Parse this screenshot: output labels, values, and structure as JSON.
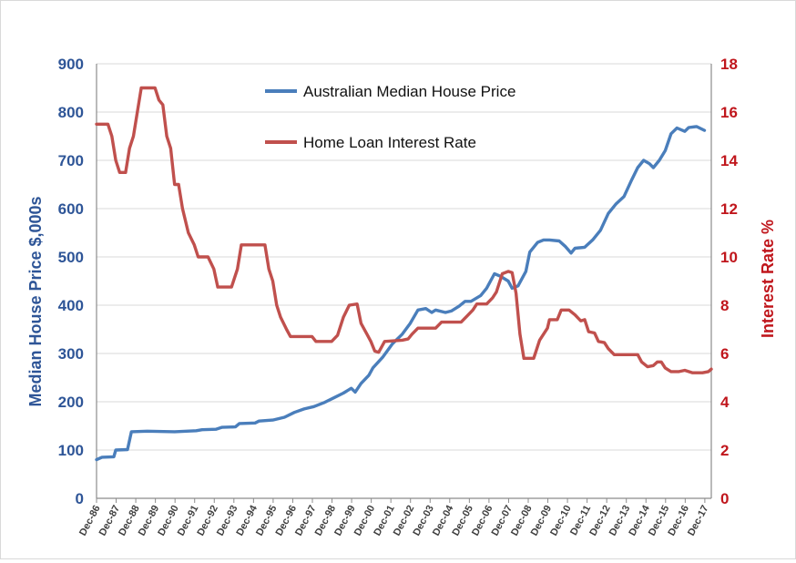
{
  "chart_data": {
    "type": "line",
    "xlabel": "",
    "ylabel_left": "Median House Price   $,000s",
    "ylabel_right": "Interest Rate  %",
    "ylim_left": [
      0,
      900
    ],
    "ylim_right": [
      0,
      18
    ],
    "yticks_left": [
      "0",
      "100",
      "200",
      "300",
      "400",
      "500",
      "600",
      "700",
      "800",
      "900"
    ],
    "yticks_right": [
      "0",
      "2",
      "4",
      "6",
      "8",
      "10",
      "12",
      "14",
      "16",
      "18"
    ],
    "grid": "horizontal",
    "legend_position": "top-center",
    "x_range": [
      1986.92,
      2018.25
    ],
    "categories": [
      "Dec-86",
      "Dec-87",
      "Dec-88",
      "Dec-89",
      "Dec-90",
      "Dec-91",
      "Dec-92",
      "Dec-93",
      "Dec-94",
      "Dec-95",
      "Dec-96",
      "Dec-97",
      "Dec-98",
      "Dec-99",
      "Dec-00",
      "Dec-01",
      "Dec-02",
      "Dec-03",
      "Dec-04",
      "Dec-05",
      "Dec-06",
      "Dec-07",
      "Dec-08",
      "Dec-09",
      "Dec-10",
      "Dec-11",
      "Dec-12",
      "Dec-13",
      "Dec-14",
      "Dec-15",
      "Dec-16",
      "Dec-17"
    ],
    "series": [
      {
        "name": "Australian Median House Price",
        "axis": "left",
        "color": "#4a7ebb",
        "points": [
          [
            1986.92,
            80
          ],
          [
            1987.2,
            85
          ],
          [
            1987.8,
            86
          ],
          [
            1987.9,
            100
          ],
          [
            1988.5,
            101
          ],
          [
            1988.7,
            138
          ],
          [
            1989.5,
            139
          ],
          [
            1990.9,
            138
          ],
          [
            1991.5,
            139
          ],
          [
            1992.0,
            140
          ],
          [
            1992.3,
            142
          ],
          [
            1993.0,
            143
          ],
          [
            1993.3,
            147
          ],
          [
            1994.0,
            148
          ],
          [
            1994.2,
            155
          ],
          [
            1995.0,
            156
          ],
          [
            1995.2,
            160
          ],
          [
            1995.9,
            162
          ],
          [
            1996.5,
            168
          ],
          [
            1997.0,
            178
          ],
          [
            1997.5,
            185
          ],
          [
            1998.0,
            190
          ],
          [
            1998.5,
            198
          ],
          [
            1999.0,
            208
          ],
          [
            1999.5,
            218
          ],
          [
            1999.9,
            228
          ],
          [
            2000.1,
            220
          ],
          [
            2000.4,
            238
          ],
          [
            2000.8,
            255
          ],
          [
            2001.0,
            270
          ],
          [
            2001.5,
            292
          ],
          [
            2002.0,
            320
          ],
          [
            2002.5,
            340
          ],
          [
            2002.9,
            362
          ],
          [
            2003.3,
            390
          ],
          [
            2003.7,
            393
          ],
          [
            2004.0,
            385
          ],
          [
            2004.2,
            390
          ],
          [
            2004.7,
            385
          ],
          [
            2005.0,
            388
          ],
          [
            2005.4,
            398
          ],
          [
            2005.7,
            408
          ],
          [
            2006.0,
            408
          ],
          [
            2006.5,
            420
          ],
          [
            2006.8,
            435
          ],
          [
            2007.2,
            465
          ],
          [
            2007.5,
            460
          ],
          [
            2007.9,
            450
          ],
          [
            2008.1,
            435
          ],
          [
            2008.4,
            440
          ],
          [
            2008.8,
            470
          ],
          [
            2009.0,
            510
          ],
          [
            2009.4,
            530
          ],
          [
            2009.7,
            535
          ],
          [
            2010.0,
            535
          ],
          [
            2010.5,
            533
          ],
          [
            2010.8,
            522
          ],
          [
            2011.1,
            508
          ],
          [
            2011.3,
            518
          ],
          [
            2011.8,
            520
          ],
          [
            2012.2,
            535
          ],
          [
            2012.6,
            555
          ],
          [
            2013.0,
            590
          ],
          [
            2013.4,
            610
          ],
          [
            2013.8,
            625
          ],
          [
            2014.2,
            660
          ],
          [
            2014.5,
            685
          ],
          [
            2014.8,
            700
          ],
          [
            2015.1,
            693
          ],
          [
            2015.3,
            685
          ],
          [
            2015.6,
            700
          ],
          [
            2015.9,
            720
          ],
          [
            2016.2,
            755
          ],
          [
            2016.5,
            767
          ],
          [
            2016.9,
            760
          ],
          [
            2017.1,
            768
          ],
          [
            2017.5,
            770
          ],
          [
            2017.9,
            762
          ]
        ]
      },
      {
        "name": "Home Loan Interest Rate",
        "axis": "right",
        "color": "#c0504d",
        "points": [
          [
            1986.92,
            15.5
          ],
          [
            1987.5,
            15.5
          ],
          [
            1987.7,
            15.0
          ],
          [
            1987.9,
            14.0
          ],
          [
            1988.1,
            13.5
          ],
          [
            1988.4,
            13.5
          ],
          [
            1988.6,
            14.5
          ],
          [
            1988.8,
            15.0
          ],
          [
            1989.0,
            16.0
          ],
          [
            1989.2,
            17.0
          ],
          [
            1989.9,
            17.0
          ],
          [
            1990.1,
            16.5
          ],
          [
            1990.3,
            16.3
          ],
          [
            1990.5,
            15.0
          ],
          [
            1990.7,
            14.5
          ],
          [
            1990.9,
            13.0
          ],
          [
            1991.1,
            13.0
          ],
          [
            1991.3,
            12.0
          ],
          [
            1991.6,
            11.0
          ],
          [
            1991.9,
            10.5
          ],
          [
            1992.1,
            10.0
          ],
          [
            1992.6,
            10.0
          ],
          [
            1992.9,
            9.5
          ],
          [
            1993.1,
            8.75
          ],
          [
            1993.8,
            8.75
          ],
          [
            1994.1,
            9.5
          ],
          [
            1994.3,
            10.5
          ],
          [
            1995.5,
            10.5
          ],
          [
            1995.7,
            9.5
          ],
          [
            1995.9,
            9.0
          ],
          [
            1996.1,
            8.0
          ],
          [
            1996.3,
            7.5
          ],
          [
            1996.6,
            7.0
          ],
          [
            1996.8,
            6.7
          ],
          [
            1997.9,
            6.7
          ],
          [
            1998.1,
            6.5
          ],
          [
            1998.9,
            6.5
          ],
          [
            1999.2,
            6.75
          ],
          [
            1999.5,
            7.5
          ],
          [
            1999.8,
            8.0
          ],
          [
            2000.2,
            8.05
          ],
          [
            2000.4,
            7.25
          ],
          [
            2000.7,
            6.8
          ],
          [
            2000.9,
            6.5
          ],
          [
            2001.1,
            6.1
          ],
          [
            2001.3,
            6.05
          ],
          [
            2001.6,
            6.5
          ],
          [
            2002.5,
            6.55
          ],
          [
            2002.8,
            6.6
          ],
          [
            2003.0,
            6.8
          ],
          [
            2003.3,
            7.05
          ],
          [
            2003.9,
            7.05
          ],
          [
            2004.2,
            7.05
          ],
          [
            2004.5,
            7.3
          ],
          [
            2005.5,
            7.3
          ],
          [
            2005.8,
            7.55
          ],
          [
            2006.1,
            7.8
          ],
          [
            2006.3,
            8.05
          ],
          [
            2006.8,
            8.05
          ],
          [
            2007.1,
            8.3
          ],
          [
            2007.3,
            8.55
          ],
          [
            2007.6,
            9.3
          ],
          [
            2007.9,
            9.4
          ],
          [
            2008.1,
            9.35
          ],
          [
            2008.3,
            8.5
          ],
          [
            2008.5,
            6.8
          ],
          [
            2008.7,
            5.8
          ],
          [
            2009.2,
            5.8
          ],
          [
            2009.5,
            6.55
          ],
          [
            2009.9,
            7.05
          ],
          [
            2010.0,
            7.4
          ],
          [
            2010.4,
            7.4
          ],
          [
            2010.6,
            7.8
          ],
          [
            2011.0,
            7.8
          ],
          [
            2011.3,
            7.6
          ],
          [
            2011.6,
            7.35
          ],
          [
            2011.8,
            7.4
          ],
          [
            2012.0,
            6.9
          ],
          [
            2012.3,
            6.85
          ],
          [
            2012.5,
            6.5
          ],
          [
            2012.8,
            6.45
          ],
          [
            2013.0,
            6.2
          ],
          [
            2013.3,
            5.95
          ],
          [
            2014.5,
            5.95
          ],
          [
            2014.7,
            5.65
          ],
          [
            2015.0,
            5.45
          ],
          [
            2015.3,
            5.5
          ],
          [
            2015.5,
            5.65
          ],
          [
            2015.7,
            5.65
          ],
          [
            2015.9,
            5.4
          ],
          [
            2016.2,
            5.25
          ],
          [
            2016.6,
            5.25
          ],
          [
            2016.9,
            5.3
          ],
          [
            2017.3,
            5.2
          ],
          [
            2017.8,
            5.2
          ],
          [
            2018.1,
            5.25
          ],
          [
            2018.25,
            5.35
          ]
        ]
      }
    ]
  }
}
